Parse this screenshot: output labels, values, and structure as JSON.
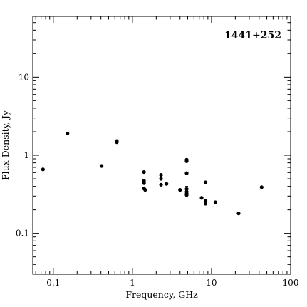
{
  "chart_data": {
    "type": "scatter",
    "title": "1441+252",
    "xlabel": "Frequency, GHz",
    "ylabel": "Flux Density, Jy",
    "xscale": "log",
    "yscale": "log",
    "xlim": [
      0.055,
      100
    ],
    "ylim": [
      0.03,
      60
    ],
    "x_ticks": [
      0.1,
      1,
      10,
      100
    ],
    "x_tick_labels": [
      "0.1",
      "1",
      "10",
      "100"
    ],
    "y_ticks": [
      0.1,
      1,
      10
    ],
    "y_tick_labels": [
      "0.1",
      "1",
      "10"
    ],
    "grid": false,
    "points": [
      {
        "x": 0.074,
        "y": 0.66
      },
      {
        "x": 0.151,
        "y": 1.9
      },
      {
        "x": 0.408,
        "y": 0.73
      },
      {
        "x": 0.635,
        "y": 1.52
      },
      {
        "x": 0.635,
        "y": 1.47
      },
      {
        "x": 1.4,
        "y": 0.61
      },
      {
        "x": 1.4,
        "y": 0.47
      },
      {
        "x": 1.4,
        "y": 0.44
      },
      {
        "x": 1.4,
        "y": 0.375
      },
      {
        "x": 1.45,
        "y": 0.36
      },
      {
        "x": 2.3,
        "y": 0.56
      },
      {
        "x": 2.3,
        "y": 0.5
      },
      {
        "x": 2.3,
        "y": 0.42
      },
      {
        "x": 2.7,
        "y": 0.43
      },
      {
        "x": 4.0,
        "y": 0.36
      },
      {
        "x": 4.85,
        "y": 0.875
      },
      {
        "x": 4.85,
        "y": 0.84
      },
      {
        "x": 4.85,
        "y": 0.59
      },
      {
        "x": 4.85,
        "y": 0.37,
        "err": 0.03
      },
      {
        "x": 4.85,
        "y": 0.34
      },
      {
        "x": 4.85,
        "y": 0.32
      },
      {
        "x": 4.85,
        "y": 0.31
      },
      {
        "x": 7.5,
        "y": 0.285
      },
      {
        "x": 8.4,
        "y": 0.45
      },
      {
        "x": 8.4,
        "y": 0.26
      },
      {
        "x": 8.4,
        "y": 0.24
      },
      {
        "x": 11.2,
        "y": 0.25
      },
      {
        "x": 22,
        "y": 0.18
      },
      {
        "x": 43,
        "y": 0.39
      }
    ]
  }
}
